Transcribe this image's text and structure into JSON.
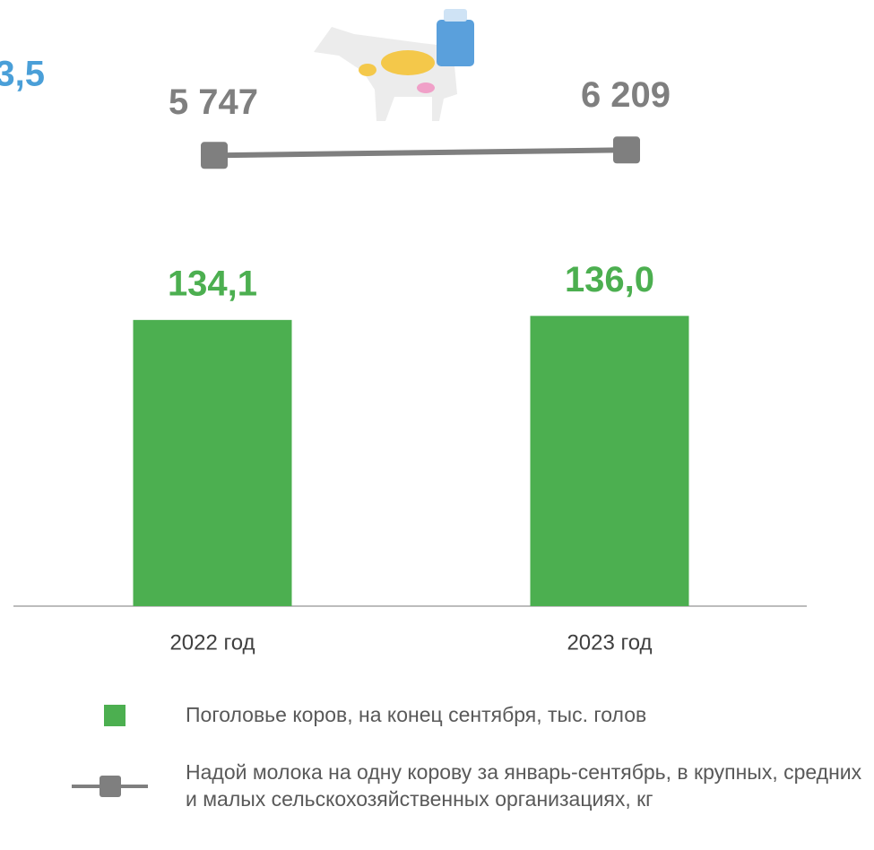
{
  "chart_data": {
    "type": "bar",
    "annotation": "3,5",
    "categories": [
      "2022 год",
      "2023 год"
    ],
    "series": [
      {
        "name": "Поголовье коров, на конец сентября, тыс. голов",
        "type": "bar",
        "color": "#4caf50",
        "values": [
          134.1,
          136.0
        ],
        "value_labels": [
          "134,1",
          "136,0"
        ]
      },
      {
        "name": "Надой молока на одну корову за январь-сентябрь, в крупных, средних и малых сельскохозяйственных организациях, кг",
        "type": "line",
        "axis": "y2",
        "color": "#7f7f7f",
        "values": [
          5747,
          6209
        ],
        "value_labels": [
          "5 747",
          "6 209"
        ]
      }
    ],
    "ylim": [
      0,
      150
    ],
    "y2lim": [
      0,
      10000
    ]
  }
}
